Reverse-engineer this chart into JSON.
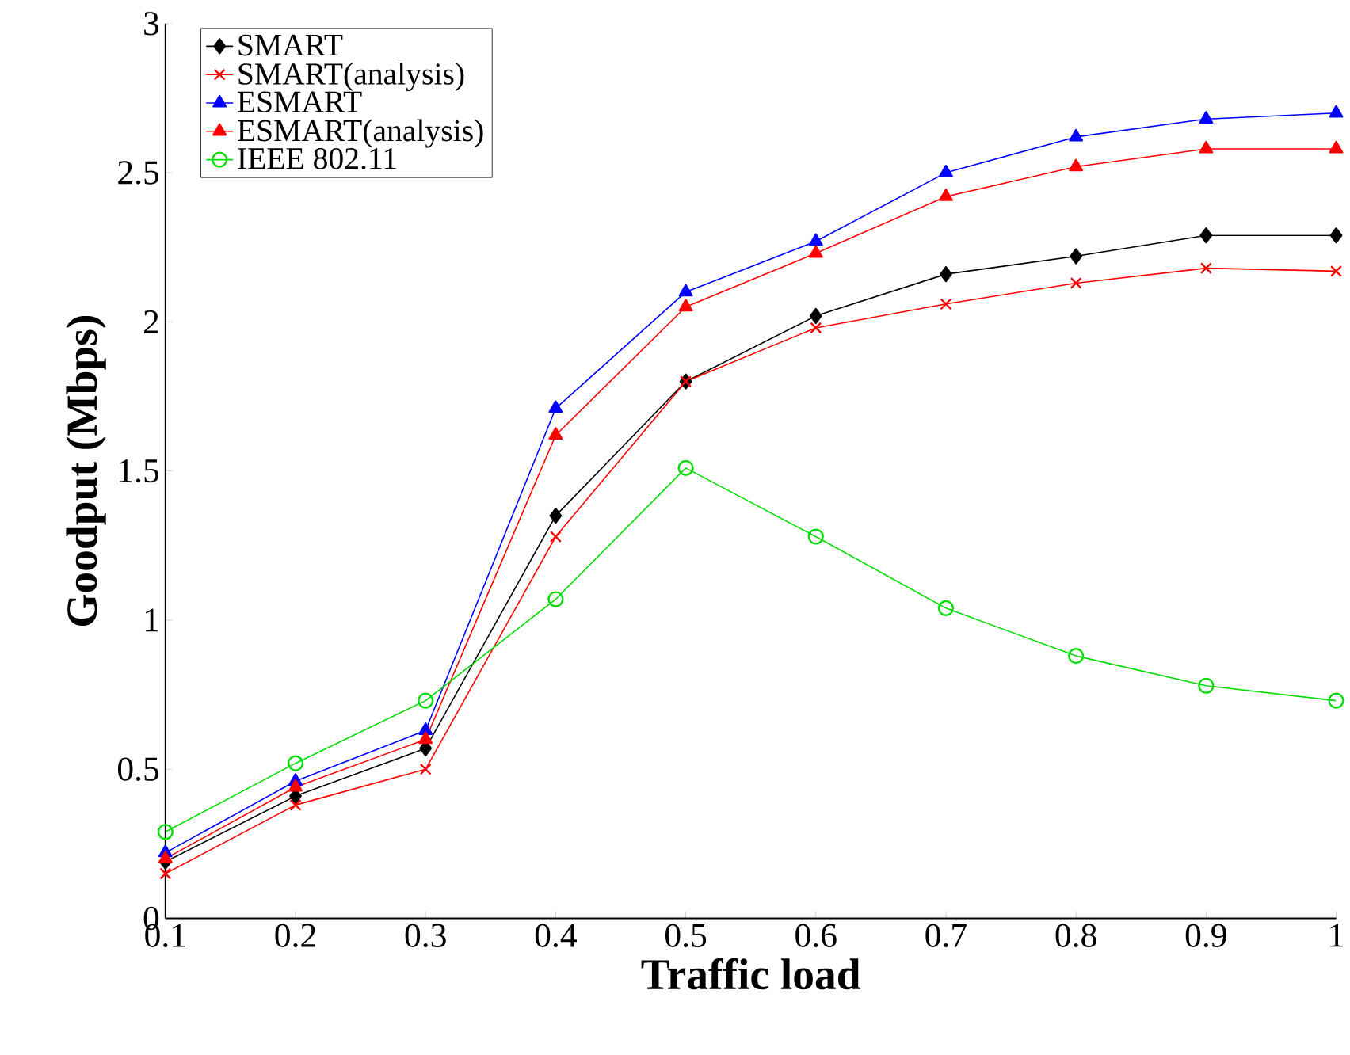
{
  "chart_data": {
    "type": "line",
    "xlabel": "Traffic load",
    "ylabel": "Goodput (Mbps)",
    "x": [
      0.1,
      0.2,
      0.3,
      0.4,
      0.5,
      0.6,
      0.7,
      0.8,
      0.9,
      1
    ],
    "xlim": [
      0.1,
      1
    ],
    "ylim": [
      0,
      3
    ],
    "xticks": [
      0.1,
      0.2,
      0.3,
      0.4,
      0.5,
      0.6,
      0.7,
      0.8,
      0.9,
      1
    ],
    "yticks": [
      0,
      0.5,
      1,
      1.5,
      2,
      2.5,
      3
    ],
    "grid": false,
    "legend": "top left",
    "series": [
      {
        "name": "SMART",
        "color": "#000000",
        "marker": "diamond",
        "values": [
          0.19,
          0.41,
          0.57,
          1.35,
          1.8,
          2.02,
          2.16,
          2.22,
          2.29,
          2.29
        ]
      },
      {
        "name": "SMART(analysis)",
        "color": "#ff0000",
        "marker": "cross",
        "values": [
          0.15,
          0.38,
          0.5,
          1.28,
          1.8,
          1.98,
          2.06,
          2.13,
          2.18,
          2.17
        ]
      },
      {
        "name": "ESMART",
        "color": "#0000ff",
        "marker": "triangle",
        "values": [
          0.22,
          0.46,
          0.63,
          1.71,
          2.1,
          2.27,
          2.5,
          2.62,
          2.68,
          2.7
        ]
      },
      {
        "name": "ESMART(analysis)",
        "color": "#ff0000",
        "marker": "triangle",
        "values": [
          0.2,
          0.44,
          0.6,
          1.62,
          2.05,
          2.23,
          2.42,
          2.52,
          2.58,
          2.58
        ]
      },
      {
        "name": "IEEE 802.11",
        "color": "#00dd00",
        "marker": "circle",
        "values": [
          0.29,
          0.52,
          0.73,
          1.07,
          1.51,
          1.28,
          1.04,
          0.88,
          0.78,
          0.73
        ]
      }
    ]
  }
}
